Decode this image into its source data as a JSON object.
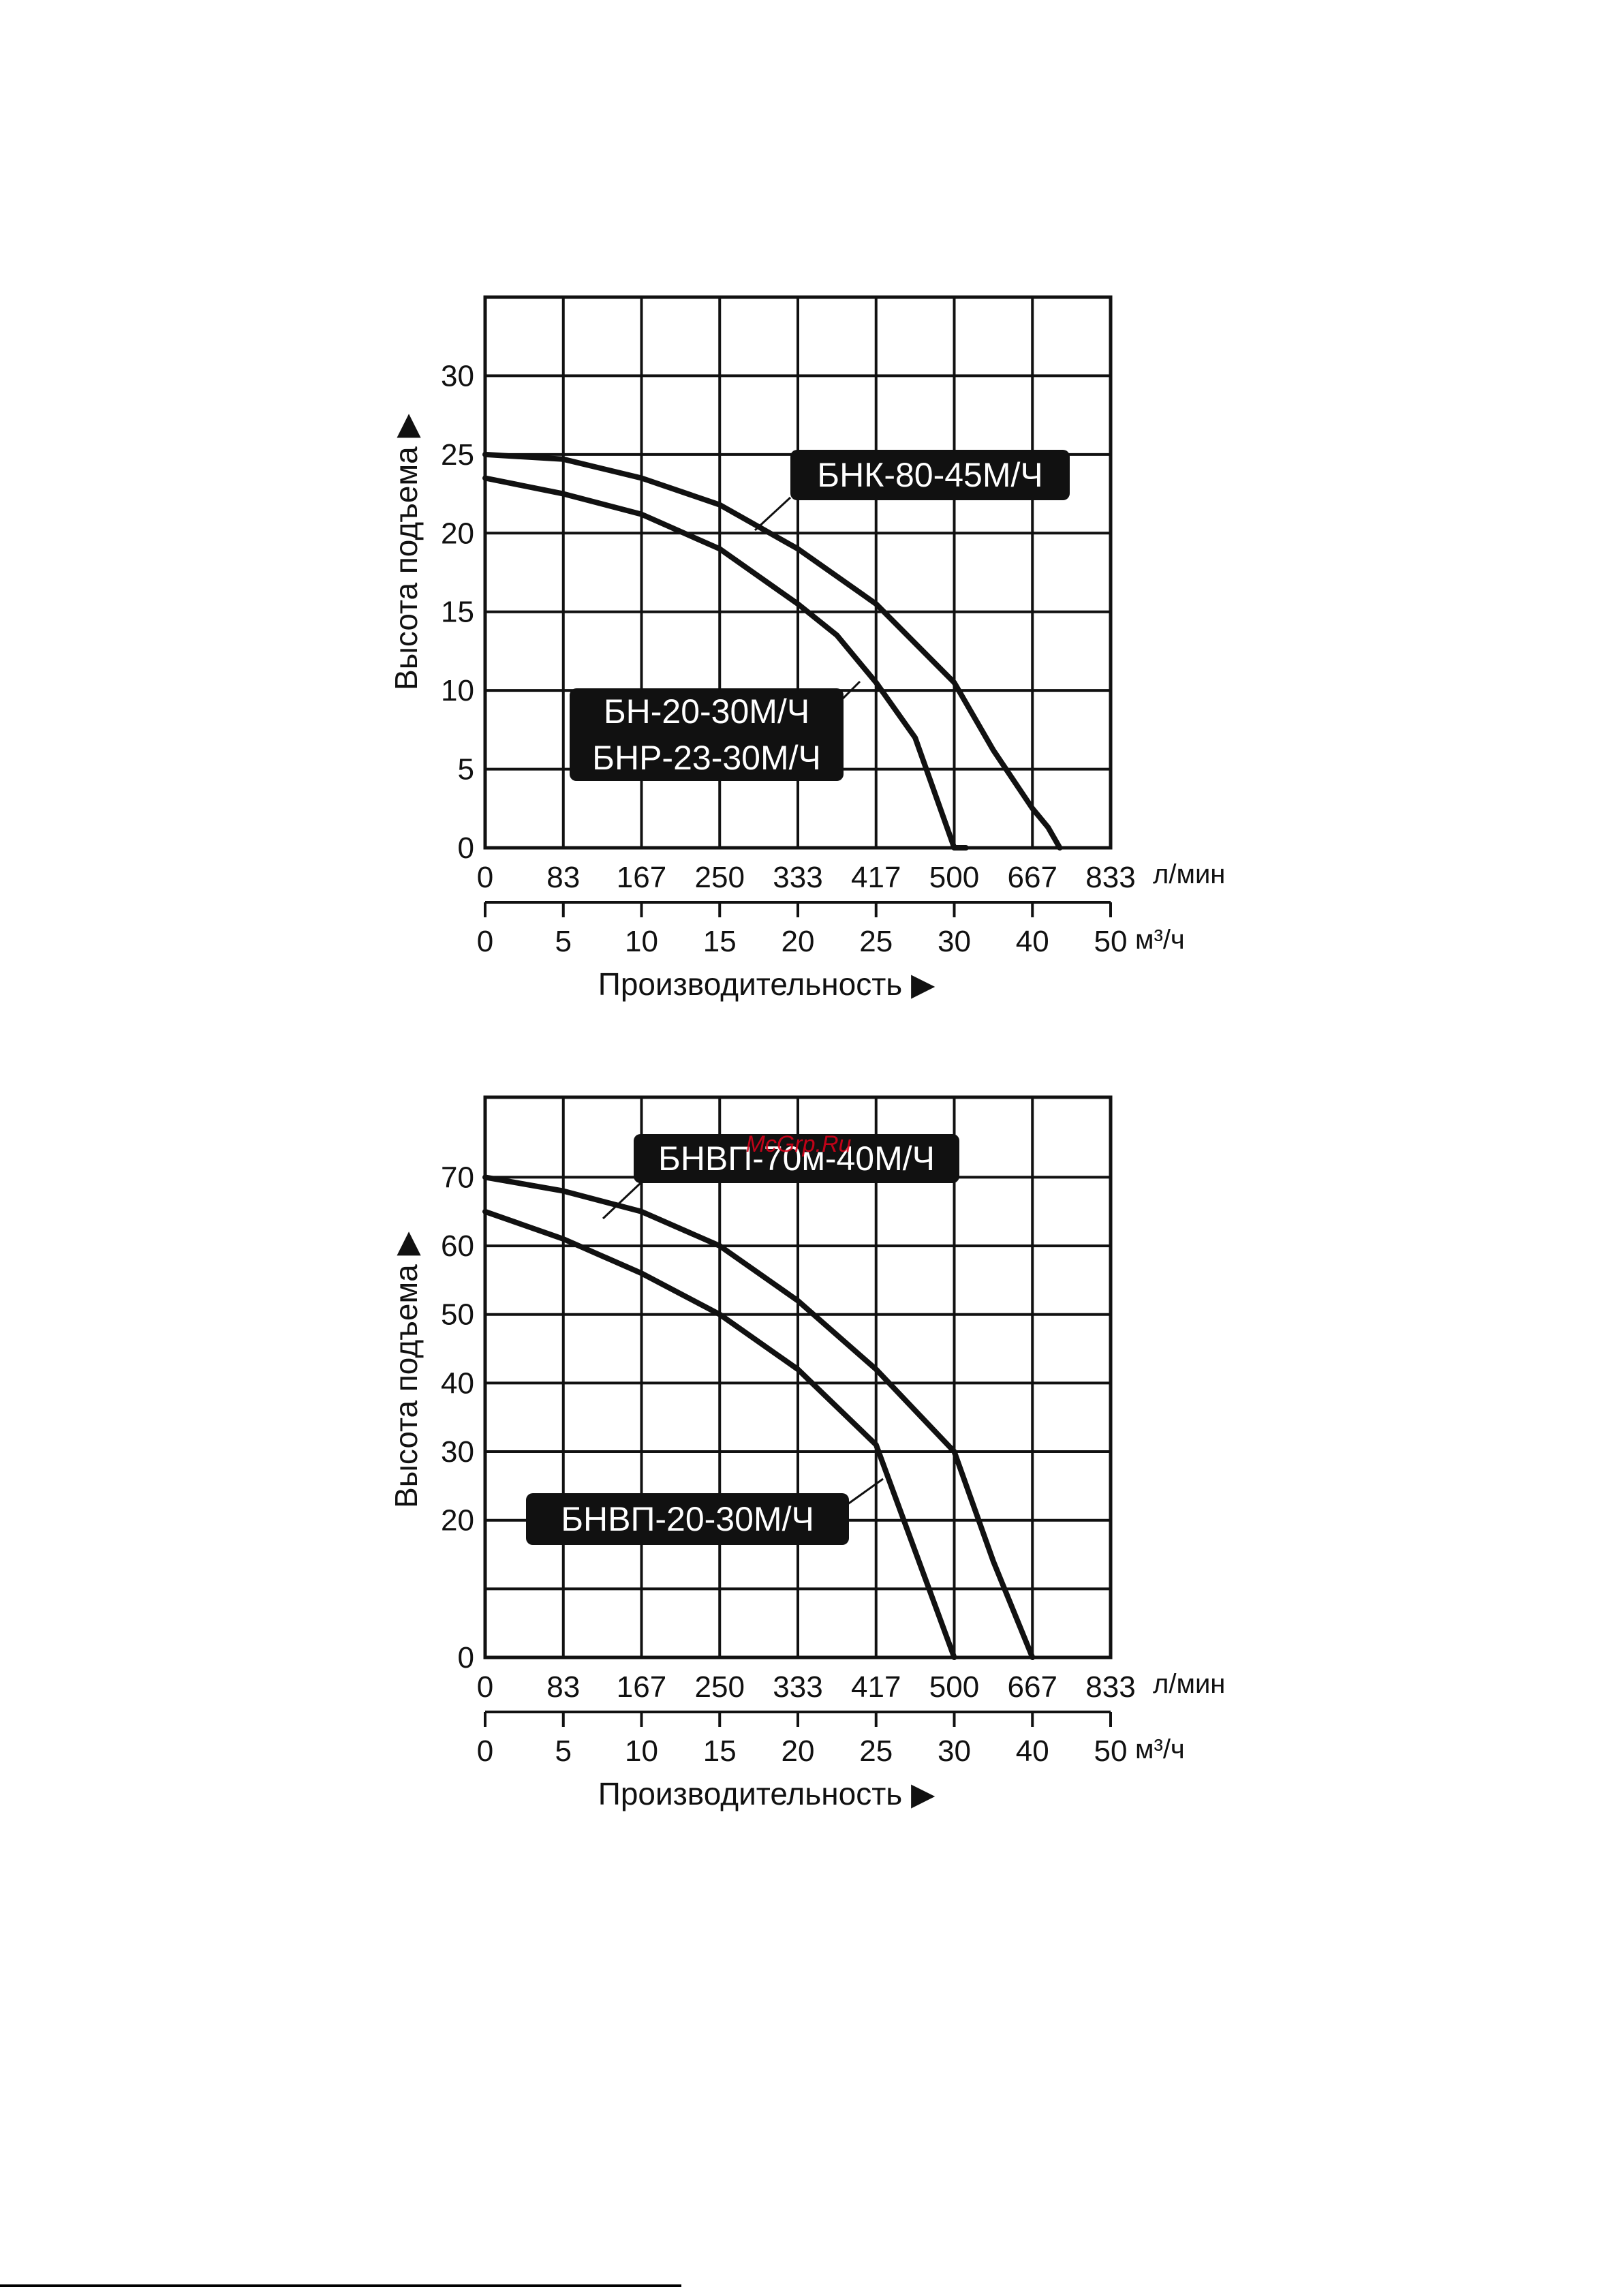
{
  "colors": {
    "ink": "#111111",
    "label_bg": "#111111",
    "label_text": "#ffffff",
    "watermark": "#e0001a"
  },
  "watermark": "McGrp.Ru",
  "chart_data": [
    {
      "type": "line",
      "ylabel": "Высота подъема ▶",
      "xlabel": "Производительность ▶",
      "ylim": [
        0,
        35
      ],
      "xlim": [
        0,
        50
      ],
      "grid": true,
      "y_ticks": [
        "0",
        "5",
        "10",
        "15",
        "20",
        "25",
        "30"
      ],
      "x_ticks_lmin": [
        "0",
        "83",
        "167",
        "250",
        "333",
        "417",
        "500",
        "667",
        "833"
      ],
      "x_unit_lmin": "л/мин",
      "x_ticks_m3h": [
        "0",
        "5",
        "10",
        "15",
        "20",
        "25",
        "30",
        "40",
        "50"
      ],
      "x_unit_m3h": "м³/ч",
      "series": [
        {
          "name": "БНК-80-45М/Ч",
          "x": [
            0,
            5,
            10,
            15,
            20,
            25,
            30,
            35,
            40,
            42,
            43.5
          ],
          "y": [
            25,
            24.7,
            23.5,
            21.8,
            19,
            15.5,
            10.5,
            6.2,
            2.5,
            1.3,
            0
          ]
        },
        {
          "name": "БН-20-30М/Ч / БНР-23-30М/Ч",
          "x": [
            0,
            5,
            10,
            15,
            20,
            22.5,
            25,
            27.5,
            30,
            31.5
          ],
          "y": [
            23.5,
            22.5,
            21.2,
            19,
            15.5,
            13.5,
            10.5,
            7,
            0,
            0
          ]
        }
      ],
      "labels": [
        {
          "lines": [
            "БНК-80-45М/Ч"
          ]
        },
        {
          "lines": [
            "БН-20-30М/Ч",
            "БНР-23-30М/Ч"
          ]
        }
      ]
    },
    {
      "type": "line",
      "ylabel": "Высота подъема ▶",
      "xlabel": "Производительность ▶",
      "ylim": [
        0,
        70
      ],
      "xlim": [
        0,
        50
      ],
      "grid": true,
      "y_ticks": [
        "0",
        "20",
        "30",
        "40",
        "50",
        "60",
        "70"
      ],
      "x_ticks_lmin": [
        "0",
        "83",
        "167",
        "250",
        "333",
        "417",
        "500",
        "667",
        "833"
      ],
      "x_unit_lmin": "л/мин",
      "x_ticks_m3h": [
        "0",
        "5",
        "10",
        "15",
        "20",
        "25",
        "30",
        "40",
        "50"
      ],
      "x_unit_m3h": "м³/ч",
      "series": [
        {
          "name": "БНВП-70м-40М/Ч",
          "x": [
            0,
            5,
            10,
            15,
            20,
            25,
            30,
            35,
            40
          ],
          "y": [
            70,
            68,
            65,
            60,
            52,
            42,
            30,
            14,
            0
          ]
        },
        {
          "name": "БНВП-20-30М/Ч",
          "x": [
            0,
            5,
            10,
            15,
            20,
            25,
            30
          ],
          "y": [
            65,
            61,
            56,
            50,
            42,
            31,
            0
          ]
        }
      ],
      "labels": [
        {
          "lines": [
            "БНВП-70м-40М/Ч"
          ]
        },
        {
          "lines": [
            "БНВП-20-30М/Ч"
          ]
        }
      ]
    }
  ]
}
